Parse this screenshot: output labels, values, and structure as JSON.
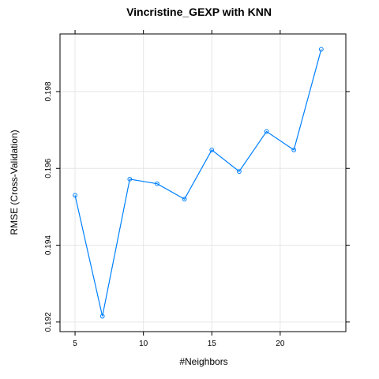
{
  "chart_data": {
    "type": "line",
    "title": "Vincristine_GEXP with KNN",
    "xlabel": "#Neighbors",
    "ylabel": "RMSE (Cross-Validation)",
    "x": [
      5,
      7,
      9,
      11,
      13,
      15,
      17,
      19,
      21,
      23
    ],
    "series": [
      {
        "values": [
          0.1953,
          0.19215,
          0.19572,
          0.1956,
          0.1952,
          0.19648,
          0.19592,
          0.19696,
          0.19648,
          0.1991
        ]
      }
    ],
    "xlim": [
      3.9,
      24.8
    ],
    "ylim": [
      0.19175,
      0.1995
    ],
    "xticks": [
      5,
      10,
      15,
      20
    ],
    "yticks": [
      0.192,
      0.194,
      0.196,
      0.198
    ],
    "ytick_labels": [
      "0.192",
      "0.194",
      "0.196",
      "0.198"
    ],
    "grid": true,
    "colors": {
      "series": "#0080ff",
      "grid": "#e6e6e6",
      "frame": "#000000"
    }
  }
}
